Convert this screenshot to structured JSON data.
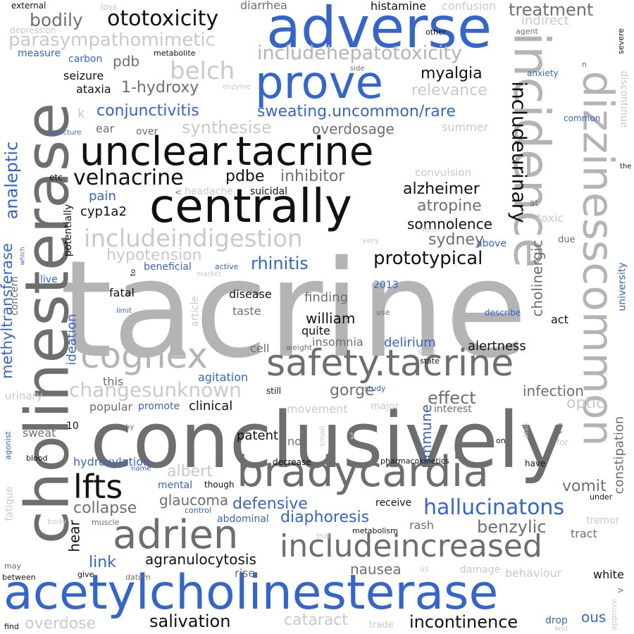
{
  "palette": {
    "black": "#111111",
    "dark": "#6e6e6e",
    "mid": "#a8a8a8",
    "light": "#c9c9c9",
    "blue": "#3366cc"
  },
  "words": [
    {
      "text": "tacrine",
      "color": "#b4b4b4"
    },
    {
      "text": "conclusively",
      "color": "#6e6e6e"
    },
    {
      "text": "acetylcholinesterase",
      "color": "#3366cc"
    },
    {
      "text": "cholinesterase",
      "color": "#6e6e6e"
    },
    {
      "text": "adverse",
      "color": "#3366cc"
    },
    {
      "text": "incidence",
      "color": "#b4b4b4"
    },
    {
      "text": "dizzinesscommon",
      "color": "#b4b4b4"
    },
    {
      "text": "centrally",
      "color": "#111111"
    },
    {
      "text": "unclear.tacrine",
      "color": "#111111"
    },
    {
      "text": "bradycardia",
      "color": "#6e6e6e"
    },
    {
      "text": "prove",
      "color": "#3366cc"
    },
    {
      "text": "safety.tacrine",
      "color": "#6e6e6e"
    },
    {
      "text": "adrien",
      "color": "#6e6e6e"
    },
    {
      "text": "includeincreased",
      "color": "#6e6e6e"
    },
    {
      "text": "cognex",
      "color": "#b4b4b4"
    },
    {
      "text": "lfts",
      "color": "#111111"
    },
    {
      "text": "includeindigestion",
      "color": "#c9c9c9"
    },
    {
      "text": "ototoxicity",
      "color": "#111111"
    },
    {
      "text": "includehepatotoxicity",
      "color": "#b4b4b4"
    },
    {
      "text": "parasympathomimetic",
      "color": "#c9c9c9"
    },
    {
      "text": "belch",
      "color": "#c9c9c9"
    },
    {
      "text": "velnacrine",
      "color": "#111111"
    },
    {
      "text": "hallucinatons",
      "color": "#3366cc"
    },
    {
      "text": "changesunknown",
      "color": "#c9c9c9"
    },
    {
      "text": "includeurinary",
      "color": "#111111"
    },
    {
      "text": "prototypical",
      "color": "#111111"
    },
    {
      "text": "bodily",
      "color": "#6e6e6e"
    },
    {
      "text": "treatment",
      "color": "#6e6e6e"
    },
    {
      "text": "methyltransferase",
      "color": "#3366cc"
    },
    {
      "text": "analeptic",
      "color": "#3366cc"
    },
    {
      "text": "salivation",
      "color": "#111111"
    },
    {
      "text": "incontinence",
      "color": "#111111"
    },
    {
      "text": "overdose",
      "color": "#c9c9c9"
    },
    {
      "text": "cataract",
      "color": "#c9c9c9"
    },
    {
      "text": "synthesise",
      "color": "#c9c9c9"
    },
    {
      "text": "overdosage",
      "color": "#6e6e6e"
    },
    {
      "text": "hypotension",
      "color": "#c9c9c9"
    },
    {
      "text": "conjunctivitis",
      "color": "#3366cc"
    },
    {
      "text": "sweating.uncommon/rare",
      "color": "#3366cc"
    },
    {
      "text": "relevance",
      "color": "#c9c9c9"
    },
    {
      "text": "1-hydroxy",
      "color": "#6e6e6e"
    },
    {
      "text": "myalgia",
      "color": "#111111"
    },
    {
      "text": "rhinitis",
      "color": "#3366cc"
    },
    {
      "text": "atropine",
      "color": "#6e6e6e"
    },
    {
      "text": "alzheimer",
      "color": "#111111"
    },
    {
      "text": "inhibitor",
      "color": "#6e6e6e"
    },
    {
      "text": "pdbe",
      "color": "#111111"
    },
    {
      "text": "sydney",
      "color": "#6e6e6e"
    },
    {
      "text": "somnolence",
      "color": "#111111"
    },
    {
      "text": "cholinergic",
      "color": "#6e6e6e"
    },
    {
      "text": "benzylic",
      "color": "#6e6e6e"
    },
    {
      "text": "defensive",
      "color": "#3366cc"
    },
    {
      "text": "diaphoresis",
      "color": "#3366cc"
    },
    {
      "text": "collapse",
      "color": "#6e6e6e"
    },
    {
      "text": "glaucoma",
      "color": "#6e6e6e"
    },
    {
      "text": "albert",
      "color": "#c9c9c9"
    },
    {
      "text": "effect",
      "color": "#6e6e6e"
    },
    {
      "text": "gorge",
      "color": "#6e6e6e"
    },
    {
      "text": "infection",
      "color": "#6e6e6e"
    },
    {
      "text": "optic",
      "color": "#c9c9c9"
    },
    {
      "text": "immune",
      "color": "#3366cc"
    },
    {
      "text": "vomit",
      "color": "#6e6e6e"
    },
    {
      "text": "constipation",
      "color": "#6e6e6e"
    },
    {
      "text": "agranulocytosis",
      "color": "#111111"
    },
    {
      "text": "nausea",
      "color": "#6e6e6e"
    },
    {
      "text": "link",
      "color": "#3366cc"
    },
    {
      "text": "hear",
      "color": "#111111"
    },
    {
      "text": "patent",
      "color": "#111111"
    },
    {
      "text": "clinical",
      "color": "#111111"
    },
    {
      "text": "delirium",
      "color": "#3366cc"
    },
    {
      "text": "alertness",
      "color": "#111111"
    },
    {
      "text": "insomnia",
      "color": "#6e6e6e"
    },
    {
      "text": "william",
      "color": "#111111"
    },
    {
      "text": "quite",
      "color": "#111111"
    },
    {
      "text": "finding",
      "color": "#6e6e6e"
    },
    {
      "text": "disease",
      "color": "#111111"
    },
    {
      "text": "taste",
      "color": "#6e6e6e"
    },
    {
      "text": "fatal",
      "color": "#111111"
    },
    {
      "text": "cell",
      "color": "#6e6e6e"
    },
    {
      "text": "cyp1a2",
      "color": "#111111"
    },
    {
      "text": "pain",
      "color": "#3366cc"
    },
    {
      "text": "ideation",
      "color": "#3366cc"
    },
    {
      "text": "agitation",
      "color": "#3366cc"
    },
    {
      "text": "this",
      "color": "#6e6e6e"
    },
    {
      "text": "hydroxylation",
      "color": "#3366cc"
    },
    {
      "text": "mental",
      "color": "#3366cc"
    },
    {
      "text": "abdominal",
      "color": "#3366cc"
    },
    {
      "text": "rash",
      "color": "#6e6e6e"
    },
    {
      "text": "tract",
      "color": "#6e6e6e"
    },
    {
      "text": "tremor",
      "color": "#c9c9c9"
    },
    {
      "text": "behaviour",
      "color": "#c9c9c9"
    },
    {
      "text": "white",
      "color": "#111111"
    },
    {
      "text": "rise",
      "color": "#6e6e6e"
    },
    {
      "text": "ous",
      "color": "#3366cc"
    },
    {
      "text": "drop",
      "color": "#3366cc"
    },
    {
      "text": "histamine",
      "color": "#111111"
    },
    {
      "text": "diarrhea",
      "color": "#6e6e6e"
    },
    {
      "text": "confusion",
      "color": "#c9c9c9"
    },
    {
      "text": "indirect",
      "color": "#c9c9c9"
    },
    {
      "text": "pdb",
      "color": "#6e6e6e"
    },
    {
      "text": "seizure",
      "color": "#111111"
    },
    {
      "text": "ataxia",
      "color": "#111111"
    },
    {
      "text": "carbon",
      "color": "#3366cc"
    },
    {
      "text": "measure",
      "color": "#3366cc"
    },
    {
      "text": "metabolite",
      "color": "#111111"
    },
    {
      "text": "ear",
      "color": "#6e6e6e"
    },
    {
      "text": "over",
      "color": "#6e6e6e"
    },
    {
      "text": "suicidal",
      "color": "#111111"
    },
    {
      "text": "headache",
      "color": "#c9c9c9"
    },
    {
      "text": "convulsion",
      "color": "#c9c9c9"
    },
    {
      "text": "summer",
      "color": "#c9c9c9"
    },
    {
      "text": "anxiety",
      "color": "#3366cc"
    },
    {
      "text": "common",
      "color": "#3366cc"
    },
    {
      "text": "university",
      "color": "#3366cc"
    },
    {
      "text": "discontinue",
      "color": "#c9c9c9"
    },
    {
      "text": "severe",
      "color": "#111111"
    },
    {
      "text": "toxic",
      "color": "#c9c9c9"
    },
    {
      "text": "due",
      "color": "#6e6e6e"
    },
    {
      "text": "above",
      "color": "#3366cc"
    },
    {
      "text": "beneficial",
      "color": "#3366cc"
    },
    {
      "text": "active",
      "color": "#3366cc"
    },
    {
      "text": "2013",
      "color": "#3366cc"
    },
    {
      "text": "use",
      "color": "#6e6e6e"
    },
    {
      "text": "describe",
      "color": "#3366cc"
    },
    {
      "text": "act",
      "color": "#111111"
    },
    {
      "text": "concern",
      "color": "#6e6e6e"
    },
    {
      "text": "potentially",
      "color": "#111111"
    },
    {
      "text": "article",
      "color": "#c9c9c9"
    },
    {
      "text": "weight",
      "color": "#6e6e6e"
    },
    {
      "text": "such",
      "color": "#c9c9c9"
    },
    {
      "text": "state",
      "color": "#111111"
    },
    {
      "text": "still",
      "color": "#111111"
    },
    {
      "text": "study",
      "color": "#3366cc"
    },
    {
      "text": "movement",
      "color": "#c9c9c9"
    },
    {
      "text": "major",
      "color": "#c9c9c9"
    },
    {
      "text": "interest",
      "color": "#6e6e6e"
    },
    {
      "text": "popular",
      "color": "#6e6e6e"
    },
    {
      "text": "promote",
      "color": "#3366cc"
    },
    {
      "text": "sweat",
      "color": "#6e6e6e"
    },
    {
      "text": "urinary",
      "color": "#c9c9c9"
    },
    {
      "text": "10",
      "color": "#111111"
    },
    {
      "text": "blood",
      "color": "#111111"
    },
    {
      "text": "agonist",
      "color": "#3366cc"
    },
    {
      "text": "fatigue",
      "color": "#c9c9c9"
    },
    {
      "text": "body",
      "color": "#c9c9c9"
    },
    {
      "text": "muscle",
      "color": "#6e6e6e"
    },
    {
      "text": "name",
      "color": "#3366cc"
    },
    {
      "text": "control",
      "color": "#3366cc"
    },
    {
      "text": "though",
      "color": "#111111"
    },
    {
      "text": "decrease",
      "color": "#111111"
    },
    {
      "text": "not",
      "color": "#6e6e6e"
    },
    {
      "text": "small",
      "color": "#c9c9c9"
    },
    {
      "text": "pharmacokinetics",
      "color": "#111111"
    },
    {
      "text": "have",
      "color": "#111111"
    },
    {
      "text": "on",
      "color": "#111111"
    },
    {
      "text": "also",
      "color": "#c9c9c9"
    },
    {
      "text": "receive",
      "color": "#111111"
    },
    {
      "text": "metabolism",
      "color": "#111111"
    },
    {
      "text": "that",
      "color": "#c9c9c9"
    },
    {
      "text": "under",
      "color": "#111111"
    },
    {
      "text": "give",
      "color": "#111111"
    },
    {
      "text": "datum",
      "color": "#6e6e6e"
    },
    {
      "text": "damage",
      "color": "#c9c9c9"
    },
    {
      "text": "us",
      "color": "#c9c9c9"
    },
    {
      "text": "trade",
      "color": "#c9c9c9"
    },
    {
      "text": "approve",
      "color": "#c9c9c9"
    },
    {
      "text": "between",
      "color": "#111111"
    },
    {
      "text": "may",
      "color": "#6e6e6e"
    },
    {
      "text": "find",
      "color": "#111111"
    },
    {
      "text": "and",
      "color": "#c9c9c9"
    },
    {
      "text": "external",
      "color": "#111111"
    },
    {
      "text": "loss",
      "color": "#c9c9c9"
    },
    {
      "text": "depression",
      "color": "#c9c9c9"
    },
    {
      "text": "other",
      "color": "#111111"
    },
    {
      "text": "agent",
      "color": "#6e6e6e"
    },
    {
      "text": "enzyme",
      "color": "#c9c9c9"
    },
    {
      "text": "structure",
      "color": "#3366cc"
    },
    {
      "text": "side",
      "color": "#6e6e6e"
    },
    {
      "text": "etc",
      "color": "#111111"
    },
    {
      "text": "form",
      "color": "#c9c9c9"
    },
    {
      "text": "very",
      "color": "#c9c9c9"
    },
    {
      "text": "at",
      "color": "#6e6e6e"
    },
    {
      "text": "the",
      "color": "#111111"
    },
    {
      "text": "limit",
      "color": "#3366cc"
    },
    {
      "text": "live",
      "color": "#3366cc"
    },
    {
      "text": "to",
      "color": "#111111"
    },
    {
      "text": "market",
      "color": "#c9c9c9"
    },
    {
      "text": "by",
      "color": "#6e6e6e"
    },
    {
      "text": "via",
      "color": "#6e6e6e"
    },
    {
      "text": "for",
      "color": "#c9c9c9"
    },
    {
      "text": "k",
      "color": "#c9c9c9"
    },
    {
      "text": "n",
      "color": "#6e6e6e"
    },
    {
      "text": "which",
      "color": "#3366cc"
    },
    {
      "text": "1",
      "color": "#c9c9c9"
    },
    {
      "text": ">",
      "color": "#6e6e6e"
    },
    {
      "text": "<",
      "color": "#6e6e6e"
    }
  ]
}
